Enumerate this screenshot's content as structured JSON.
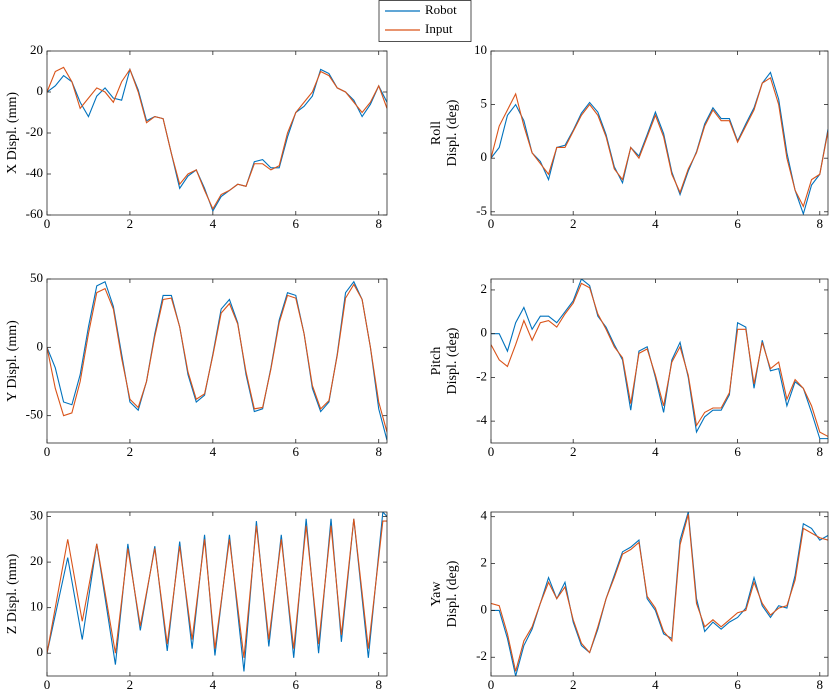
{
  "chart_data": [
    {
      "type": "line",
      "ylabel": "X Displ. (mm)",
      "x": [
        0,
        0.2,
        0.4,
        0.6,
        0.8,
        1,
        1.2,
        1.4,
        1.6,
        1.8,
        2,
        2.2,
        2.4,
        2.6,
        2.8,
        3,
        3.2,
        3.4,
        3.6,
        3.8,
        4,
        4.2,
        4.4,
        4.6,
        4.8,
        5,
        5.2,
        5.4,
        5.6,
        5.8,
        6,
        6.2,
        6.4,
        6.6,
        6.8,
        7,
        7.2,
        7.4,
        7.6,
        7.8,
        8,
        8.2
      ],
      "xlim": [
        0,
        8.2
      ],
      "xticks": [
        0,
        2,
        4,
        6,
        8
      ],
      "ylim": [
        -60,
        20
      ],
      "yticks": [
        -60,
        -40,
        -20,
        0,
        20
      ],
      "legend": "top-center",
      "series": [
        {
          "name": "Robot",
          "color": "#0072bd",
          "values": [
            0,
            3,
            8,
            5,
            -5,
            -12,
            -2,
            2,
            -3,
            -4,
            11,
            1,
            -14,
            -12,
            -13,
            -30,
            -47,
            -41,
            -38,
            -47,
            -58,
            -51,
            -48,
            -45,
            -46,
            -34,
            -33,
            -37,
            -37,
            -22,
            -10,
            -7,
            -2,
            11,
            9,
            2,
            0,
            -4,
            -12,
            -6,
            3,
            -5
          ]
        },
        {
          "name": "Input",
          "color": "#d95319",
          "values": [
            0,
            10,
            12,
            5,
            -8,
            -3,
            2,
            0,
            -5,
            5,
            11,
            0,
            -15,
            -12,
            -13,
            -30,
            -45,
            -40,
            -38,
            -48,
            -57,
            -50,
            -48,
            -45,
            -46,
            -35,
            -35,
            -38,
            -36,
            -20,
            -10,
            -5,
            0,
            10,
            8,
            2,
            0,
            -5,
            -10,
            -5,
            3,
            -8
          ]
        }
      ]
    },
    {
      "type": "line",
      "ylabel": [
        "Roll",
        "Displ. (deg)"
      ],
      "x": [
        0,
        0.2,
        0.4,
        0.6,
        0.8,
        1,
        1.2,
        1.4,
        1.6,
        1.8,
        2,
        2.2,
        2.4,
        2.6,
        2.8,
        3,
        3.2,
        3.4,
        3.6,
        3.8,
        4,
        4.2,
        4.4,
        4.6,
        4.8,
        5,
        5.2,
        5.4,
        5.6,
        5.8,
        6,
        6.2,
        6.4,
        6.6,
        6.8,
        7,
        7.2,
        7.4,
        7.6,
        7.8,
        8,
        8.2
      ],
      "xlim": [
        0,
        8.2
      ],
      "xticks": [
        0,
        2,
        4,
        6,
        8
      ],
      "ylim": [
        -5.3,
        10
      ],
      "yticks": [
        -5,
        0,
        5,
        10
      ],
      "series": [
        {
          "name": "Robot",
          "color": "#0072bd",
          "values": [
            0,
            1,
            4,
            5,
            3.5,
            0.5,
            -0.3,
            -2,
            1,
            1.2,
            2.6,
            4.2,
            5.2,
            4.3,
            2.2,
            -0.8,
            -2.3,
            1,
            0.2,
            2.2,
            4.3,
            2.3,
            -1.3,
            -3.4,
            -1.2,
            0.6,
            3.2,
            4.7,
            3.7,
            3.7,
            1.6,
            3.2,
            4.7,
            7,
            8,
            5.5,
            0.5,
            -3,
            -5.2,
            -2.5,
            -1.5,
            2.7
          ]
        },
        {
          "name": "Input",
          "color": "#d95319",
          "values": [
            0,
            3,
            4.5,
            6,
            3,
            0.5,
            -0.5,
            -1.5,
            1,
            1,
            2.5,
            4,
            5,
            4,
            2,
            -1,
            -2,
            1,
            0,
            2,
            4,
            2,
            -1.5,
            -3.2,
            -1,
            0.5,
            3,
            4.5,
            3.5,
            3.5,
            1.5,
            3,
            4.5,
            7,
            7.5,
            5,
            0,
            -3,
            -4.5,
            -2,
            -1.5,
            2.5
          ]
        }
      ]
    },
    {
      "type": "line",
      "ylabel": "Y Displ. (mm)",
      "x": [
        0,
        0.2,
        0.4,
        0.6,
        0.8,
        1,
        1.2,
        1.4,
        1.6,
        1.8,
        2,
        2.2,
        2.4,
        2.6,
        2.8,
        3,
        3.2,
        3.4,
        3.6,
        3.8,
        4,
        4.2,
        4.4,
        4.6,
        4.8,
        5,
        5.2,
        5.4,
        5.6,
        5.8,
        6,
        6.2,
        6.4,
        6.6,
        6.8,
        7,
        7.2,
        7.4,
        7.6,
        7.8,
        8,
        8.2
      ],
      "xlim": [
        0,
        8.2
      ],
      "xticks": [
        0,
        2,
        4,
        6,
        8
      ],
      "ylim": [
        -70,
        50
      ],
      "yticks": [
        -50,
        0,
        50
      ],
      "series": [
        {
          "name": "Robot",
          "color": "#0072bd",
          "values": [
            0,
            -15,
            -40,
            -42,
            -20,
            15,
            45,
            48,
            30,
            -5,
            -40,
            -46,
            -25,
            10,
            38,
            38,
            15,
            -20,
            -40,
            -35,
            -5,
            28,
            35,
            18,
            -20,
            -47,
            -45,
            -15,
            20,
            40,
            38,
            10,
            -30,
            -47,
            -40,
            -5,
            40,
            48,
            35,
            0,
            -45,
            -68
          ]
        },
        {
          "name": "Input",
          "color": "#d95319",
          "values": [
            0,
            -30,
            -50,
            -48,
            -25,
            10,
            40,
            43,
            28,
            -8,
            -38,
            -44,
            -25,
            8,
            35,
            36,
            15,
            -18,
            -38,
            -34,
            -6,
            25,
            32,
            17,
            -18,
            -45,
            -44,
            -16,
            18,
            38,
            36,
            10,
            -28,
            -45,
            -39,
            -6,
            36,
            46,
            35,
            0,
            -40,
            -62
          ]
        }
      ]
    },
    {
      "type": "line",
      "ylabel": [
        "Pitch",
        "Displ. (deg)"
      ],
      "x": [
        0,
        0.2,
        0.4,
        0.6,
        0.8,
        1,
        1.2,
        1.4,
        1.6,
        1.8,
        2,
        2.2,
        2.4,
        2.6,
        2.8,
        3,
        3.2,
        3.4,
        3.6,
        3.8,
        4,
        4.2,
        4.4,
        4.6,
        4.8,
        5,
        5.2,
        5.4,
        5.6,
        5.8,
        6,
        6.2,
        6.4,
        6.6,
        6.8,
        7,
        7.2,
        7.4,
        7.6,
        7.8,
        8,
        8.2
      ],
      "xlim": [
        0,
        8.2
      ],
      "xticks": [
        0,
        2,
        4,
        6,
        8
      ],
      "ylim": [
        -5,
        2.5
      ],
      "yticks": [
        -4,
        -2,
        0,
        2
      ],
      "series": [
        {
          "name": "Robot",
          "color": "#0072bd",
          "values": [
            0,
            0,
            -0.8,
            0.5,
            1.2,
            0.2,
            0.8,
            0.8,
            0.5,
            1,
            1.5,
            2.5,
            2.2,
            0.8,
            0.3,
            -0.5,
            -1.2,
            -3.5,
            -0.8,
            -0.6,
            -2,
            -3.6,
            -1.2,
            -0.4,
            -2,
            -4.5,
            -3.8,
            -3.5,
            -3.5,
            -2.8,
            0.5,
            0.3,
            -2.5,
            -0.3,
            -1.7,
            -1.6,
            -3.3,
            -2.2,
            -2.5,
            -3.6,
            -4.8,
            -4.8
          ]
        },
        {
          "name": "Input",
          "color": "#d95319",
          "values": [
            -0.5,
            -1.2,
            -1.5,
            -0.5,
            0.6,
            -0.3,
            0.5,
            0.6,
            0.3,
            0.9,
            1.4,
            2.3,
            2.1,
            0.9,
            0.2,
            -0.6,
            -1.1,
            -3.2,
            -0.9,
            -0.7,
            -1.9,
            -3.3,
            -1.3,
            -0.6,
            -1.9,
            -4.2,
            -3.6,
            -3.4,
            -3.4,
            -2.7,
            0.2,
            0.2,
            -2.3,
            -0.4,
            -1.6,
            -1.3,
            -3,
            -2.1,
            -2.5,
            -3.3,
            -4.5,
            -4.7
          ]
        }
      ]
    },
    {
      "type": "line",
      "ylabel": "Z Displ. (mm)",
      "x": [
        0,
        0.5,
        0.85,
        1.2,
        1.65,
        1.95,
        2.25,
        2.6,
        2.9,
        3.2,
        3.5,
        3.8,
        4.05,
        4.4,
        4.75,
        5.05,
        5.35,
        5.65,
        5.95,
        6.25,
        6.55,
        6.85,
        7.1,
        7.4,
        7.75,
        8.1,
        8.2
      ],
      "xlim": [
        0,
        8.2
      ],
      "xticks": [
        0,
        2,
        4,
        6,
        8
      ],
      "ylim": [
        -5,
        31
      ],
      "yticks": [
        0,
        10,
        20,
        30
      ],
      "series": [
        {
          "name": "Robot",
          "color": "#0072bd",
          "values": [
            0,
            21,
            3,
            24,
            -2.5,
            24,
            5,
            23.5,
            0.5,
            24.5,
            1,
            26,
            -0.5,
            26,
            -4,
            29,
            1.5,
            26,
            -1,
            29.5,
            0,
            29.5,
            2.5,
            29.5,
            -1,
            31,
            30
          ]
        },
        {
          "name": "Input",
          "color": "#d95319",
          "values": [
            0,
            25,
            7,
            24,
            0,
            23,
            6,
            23,
            2,
            23.5,
            3,
            25,
            1,
            25,
            -1,
            28,
            3,
            25,
            1,
            28,
            2,
            28,
            4,
            29.5,
            1,
            29,
            29
          ]
        }
      ]
    },
    {
      "type": "line",
      "ylabel": [
        "Yaw",
        "Displ. (deg)"
      ],
      "x": [
        0,
        0.2,
        0.4,
        0.6,
        0.8,
        1,
        1.2,
        1.4,
        1.6,
        1.8,
        2,
        2.2,
        2.4,
        2.6,
        2.8,
        3,
        3.2,
        3.4,
        3.6,
        3.8,
        4,
        4.2,
        4.4,
        4.6,
        4.8,
        5,
        5.2,
        5.4,
        5.6,
        5.8,
        6,
        6.2,
        6.4,
        6.6,
        6.8,
        7,
        7.2,
        7.4,
        7.6,
        7.8,
        8,
        8.2
      ],
      "xlim": [
        0,
        8.2
      ],
      "xticks": [
        0,
        2,
        4,
        6,
        8
      ],
      "ylim": [
        -2.8,
        4.2
      ],
      "yticks": [
        -2,
        0,
        2,
        4
      ],
      "series": [
        {
          "name": "Robot",
          "color": "#0072bd",
          "values": [
            0,
            0,
            -1.2,
            -2.8,
            -1.5,
            -0.8,
            0.3,
            1.4,
            0.5,
            1.2,
            -0.5,
            -1.5,
            -1.8,
            -0.8,
            0.5,
            1.5,
            2.5,
            2.7,
            3,
            0.5,
            0,
            -1,
            -1.2,
            3,
            4.2,
            0.5,
            -0.9,
            -0.5,
            -0.8,
            -0.5,
            -0.3,
            0.1,
            1.4,
            0.2,
            -0.3,
            0.2,
            0.1,
            1.5,
            3.7,
            3.5,
            3,
            3.2
          ]
        },
        {
          "name": "Input",
          "color": "#d95319",
          "values": [
            0.3,
            0.2,
            -1,
            -2.6,
            -1.3,
            -0.7,
            0.3,
            1.2,
            0.5,
            1,
            -0.4,
            -1.4,
            -1.8,
            -0.7,
            0.5,
            1.4,
            2.4,
            2.6,
            2.9,
            0.6,
            0.1,
            -0.9,
            -1.3,
            2.8,
            4.1,
            0.3,
            -0.7,
            -0.4,
            -0.7,
            -0.4,
            -0.1,
            0,
            1.2,
            0.3,
            -0.2,
            0.1,
            0.2,
            1.3,
            3.5,
            3.3,
            3.1,
            3
          ]
        }
      ]
    }
  ]
}
